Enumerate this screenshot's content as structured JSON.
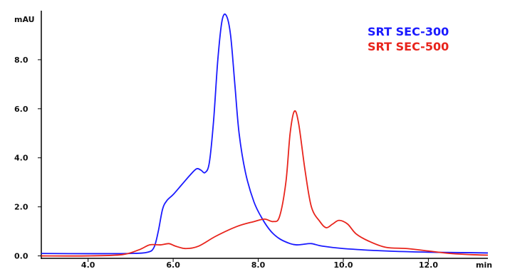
{
  "chart_data": {
    "type": "line",
    "x_unit": "min",
    "y_unit": "mAU",
    "xlim": [
      2.9,
      13.4
    ],
    "ylim": [
      -0.1,
      10.0
    ],
    "x_ticks": [
      4.0,
      6.0,
      8.0,
      10.0,
      12.0
    ],
    "x_tick_labels": [
      "4.0",
      "6.0",
      "8.0",
      "10.0",
      "12.0"
    ],
    "y_ticks": [
      0.0,
      2.0,
      4.0,
      6.0,
      8.0
    ],
    "y_tick_labels": [
      "0.0",
      "2.0",
      "4.0",
      "6.0",
      "8.0"
    ],
    "grid": false,
    "legend_position": "top-right",
    "series": [
      {
        "name": "SRT SEC-300",
        "color": "#1a1aff",
        "points": [
          [
            2.9,
            0.1
          ],
          [
            4.0,
            0.09
          ],
          [
            5.0,
            0.1
          ],
          [
            5.4,
            0.15
          ],
          [
            5.55,
            0.35
          ],
          [
            5.65,
            1.0
          ],
          [
            5.75,
            1.9
          ],
          [
            5.85,
            2.25
          ],
          [
            6.0,
            2.5
          ],
          [
            6.2,
            2.9
          ],
          [
            6.4,
            3.3
          ],
          [
            6.55,
            3.55
          ],
          [
            6.65,
            3.5
          ],
          [
            6.75,
            3.4
          ],
          [
            6.85,
            3.8
          ],
          [
            6.95,
            5.5
          ],
          [
            7.05,
            8.0
          ],
          [
            7.15,
            9.6
          ],
          [
            7.25,
            9.8
          ],
          [
            7.35,
            9.0
          ],
          [
            7.45,
            7.0
          ],
          [
            7.55,
            5.0
          ],
          [
            7.7,
            3.4
          ],
          [
            7.9,
            2.2
          ],
          [
            8.1,
            1.5
          ],
          [
            8.3,
            1.0
          ],
          [
            8.5,
            0.7
          ],
          [
            8.75,
            0.5
          ],
          [
            8.9,
            0.45
          ],
          [
            9.05,
            0.47
          ],
          [
            9.25,
            0.5
          ],
          [
            9.5,
            0.4
          ],
          [
            10.0,
            0.3
          ],
          [
            11.0,
            0.2
          ],
          [
            12.0,
            0.15
          ],
          [
            13.0,
            0.13
          ],
          [
            13.4,
            0.12
          ]
        ]
      },
      {
        "name": "SRT SEC-500",
        "color": "#e8241c",
        "points": [
          [
            2.9,
            0.0
          ],
          [
            4.0,
            0.0
          ],
          [
            4.8,
            0.05
          ],
          [
            5.2,
            0.25
          ],
          [
            5.45,
            0.45
          ],
          [
            5.7,
            0.45
          ],
          [
            5.9,
            0.5
          ],
          [
            6.05,
            0.4
          ],
          [
            6.3,
            0.3
          ],
          [
            6.6,
            0.4
          ],
          [
            7.0,
            0.8
          ],
          [
            7.5,
            1.2
          ],
          [
            7.9,
            1.4
          ],
          [
            8.15,
            1.5
          ],
          [
            8.35,
            1.4
          ],
          [
            8.5,
            1.6
          ],
          [
            8.65,
            3.0
          ],
          [
            8.75,
            5.0
          ],
          [
            8.85,
            5.9
          ],
          [
            8.95,
            5.4
          ],
          [
            9.1,
            3.5
          ],
          [
            9.25,
            2.0
          ],
          [
            9.45,
            1.4
          ],
          [
            9.6,
            1.15
          ],
          [
            9.75,
            1.3
          ],
          [
            9.9,
            1.45
          ],
          [
            10.1,
            1.3
          ],
          [
            10.3,
            0.9
          ],
          [
            10.6,
            0.6
          ],
          [
            11.0,
            0.35
          ],
          [
            11.5,
            0.3
          ],
          [
            12.0,
            0.2
          ],
          [
            12.5,
            0.1
          ],
          [
            13.0,
            0.05
          ],
          [
            13.4,
            0.03
          ]
        ]
      }
    ]
  }
}
